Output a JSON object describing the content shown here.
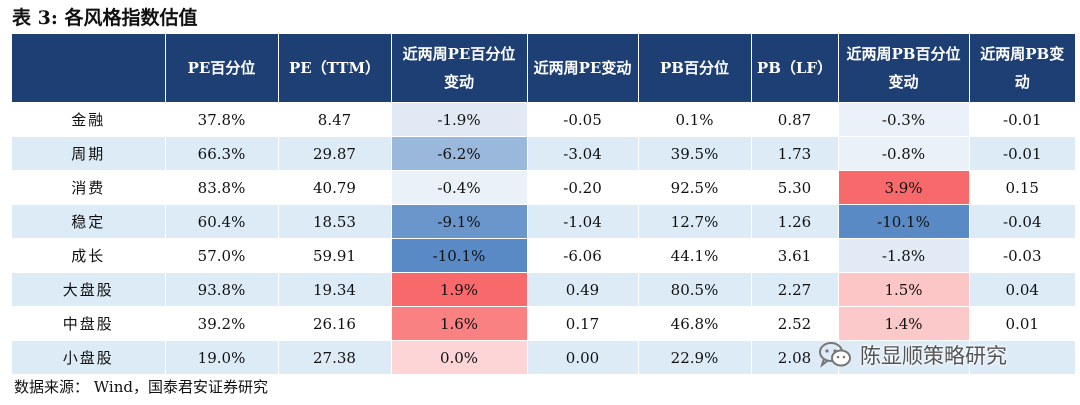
{
  "title": "表 3:  各风格指数估值",
  "columns": [
    "",
    "PE百分位",
    "PE（TTM）",
    "近两周PE百分位变动",
    "近两周PE变动",
    "PB百分位",
    "PB（LF）",
    "近两周PB百分位变动",
    "近两周PB变动"
  ],
  "rows": [
    {
      "name": "金融",
      "pe_pct": "37.8%",
      "pe_ttm": "8.47",
      "pe_pct_chg": "-1.9%",
      "pe_chg": "-0.05",
      "pb_pct": "0.1%",
      "pb_lf": "0.87",
      "pb_pct_chg": "-0.3%",
      "pb_chg": "-0.01"
    },
    {
      "name": "周期",
      "pe_pct": "66.3%",
      "pe_ttm": "29.87",
      "pe_pct_chg": "-6.2%",
      "pe_chg": "-3.04",
      "pb_pct": "39.5%",
      "pb_lf": "1.73",
      "pb_pct_chg": "-0.8%",
      "pb_chg": "-0.01"
    },
    {
      "name": "消费",
      "pe_pct": "83.8%",
      "pe_ttm": "40.79",
      "pe_pct_chg": "-0.4%",
      "pe_chg": "-0.20",
      "pb_pct": "92.5%",
      "pb_lf": "5.30",
      "pb_pct_chg": "3.9%",
      "pb_chg": "0.15"
    },
    {
      "name": "稳定",
      "pe_pct": "60.4%",
      "pe_ttm": "18.53",
      "pe_pct_chg": "-9.1%",
      "pe_chg": "-1.04",
      "pb_pct": "12.7%",
      "pb_lf": "1.26",
      "pb_pct_chg": "-10.1%",
      "pb_chg": "-0.04"
    },
    {
      "name": "成长",
      "pe_pct": "57.0%",
      "pe_ttm": "59.91",
      "pe_pct_chg": "-10.1%",
      "pe_chg": "-6.06",
      "pb_pct": "44.1%",
      "pb_lf": "3.61",
      "pb_pct_chg": "-1.8%",
      "pb_chg": "-0.03"
    },
    {
      "name": "大盘股",
      "pe_pct": "93.8%",
      "pe_ttm": "19.34",
      "pe_pct_chg": "1.9%",
      "pe_chg": "0.49",
      "pb_pct": "80.5%",
      "pb_lf": "2.27",
      "pb_pct_chg": "1.5%",
      "pb_chg": "0.04"
    },
    {
      "name": "中盘股",
      "pe_pct": "39.2%",
      "pe_ttm": "26.16",
      "pe_pct_chg": "1.6%",
      "pe_chg": "0.17",
      "pb_pct": "46.8%",
      "pb_lf": "2.52",
      "pb_pct_chg": "1.4%",
      "pb_chg": "0.01"
    },
    {
      "name": "小盘股",
      "pe_pct": "19.0%",
      "pe_ttm": "27.38",
      "pe_pct_chg": "0.0%",
      "pe_chg": "0.00",
      "pb_pct": "22.9%",
      "pb_lf": "2.08",
      "pb_pct_chg": "",
      "pb_chg": ""
    }
  ],
  "source": "数据来源：  Wind，国泰君安证券研究",
  "watermark": "陈显顺策略研究",
  "colors": {
    "header": "#1e3f73",
    "stripe": "#ddebf7",
    "positive": "#f8696b",
    "negative": "#5a8ac6"
  }
}
